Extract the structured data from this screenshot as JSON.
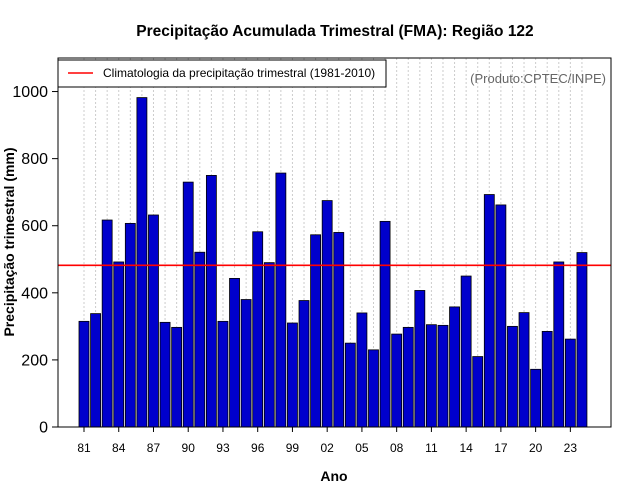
{
  "chart_data": {
    "type": "bar",
    "title": "Precipitação Acumulada Trimestral (FMA): Região 122",
    "xlabel": "Ano",
    "ylabel": "Precipitação trimestral (mm)",
    "source": "(Produto:CPTEC/INPE)",
    "legend": {
      "label": "Climatologia da precipitação trimestral (1981-2010)",
      "placement": "top-left"
    },
    "climatology": 482,
    "ylim": [
      0,
      1100
    ],
    "yticks": [
      "0",
      "200",
      "400",
      "600",
      "800",
      "1000"
    ],
    "ytick_values": [
      0,
      200,
      400,
      600,
      800,
      1000
    ],
    "categories": [
      1981,
      1982,
      1983,
      1984,
      1985,
      1986,
      1987,
      1988,
      1989,
      1990,
      1991,
      1992,
      1993,
      1994,
      1995,
      1996,
      1997,
      1998,
      1999,
      2000,
      2001,
      2002,
      2003,
      2004,
      2005,
      2006,
      2007,
      2008,
      2009,
      2010,
      2011,
      2012,
      2013,
      2014,
      2015,
      2016,
      2017,
      2018,
      2019,
      2020,
      2021,
      2022,
      2023,
      2024
    ],
    "values": [
      315,
      338,
      617,
      492,
      607,
      982,
      632,
      312,
      297,
      730,
      521,
      750,
      315,
      443,
      380,
      582,
      490,
      757,
      310,
      377,
      573,
      675,
      580,
      250,
      340,
      230,
      613,
      277,
      297,
      407,
      305,
      303,
      358,
      450,
      210,
      693,
      662,
      300,
      341,
      172,
      285,
      492,
      262,
      520
    ],
    "xtick_labels": [
      "81",
      "84",
      "87",
      "90",
      "93",
      "96",
      "99",
      "02",
      "05",
      "08",
      "11",
      "14",
      "17",
      "20",
      "23"
    ],
    "xtick_index": [
      0,
      3,
      6,
      9,
      12,
      15,
      18,
      21,
      24,
      27,
      30,
      33,
      36,
      39,
      42
    ],
    "grid": "vertical-dotted",
    "colors": {
      "bar_fill": "#0000cc",
      "bar_edge": "#000000",
      "climatology_line": "#ff0000",
      "grid": "#cccccc",
      "source_text": "#666666"
    }
  }
}
